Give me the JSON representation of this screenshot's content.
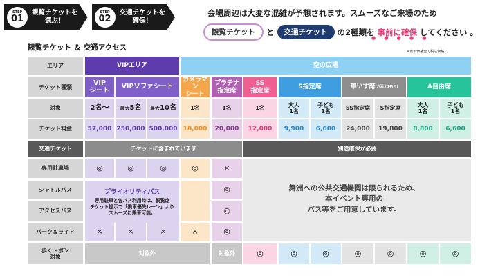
{
  "steps": [
    {
      "word": "STEP",
      "num": "01",
      "line1": "観覧チケットを",
      "line2": "選ぶ！"
    },
    {
      "word": "STEP",
      "num": "02",
      "line1": "交通チケットを",
      "line2": "確保！"
    }
  ],
  "notice": {
    "line1": "会場周辺は大変な混雑が予想されます。スムーズなご来場のため",
    "pill1": "観覧チケット",
    "and": "と",
    "pill2": "交通チケット",
    "mid": "の2種類を",
    "emph": "事前に確保",
    "end": "してください 。",
    "dots": "● ● ● ● ●"
  },
  "section_title": "観覧チケット ＆ 交通アクセス",
  "tax_note": "※表示価格全て税込価格。",
  "row_labels": {
    "area": "エリア",
    "type": "チケット種類",
    "target": "対象",
    "price": "チケット料金",
    "transport": "交通チケット",
    "parking": "専用駐車場",
    "shuttle": "シャトルバス",
    "access": "アクセスバス",
    "park_ride": "パーク＆ライド",
    "walk_1": "歩く～ポン",
    "walk_2": "対象"
  },
  "areas": {
    "vip": "VIPエリア",
    "sky": "空の広場"
  },
  "types": {
    "vip_1": "VIP",
    "vip_2": "シート",
    "sofa": "VIPソファシート",
    "camera_1": "カメラマン",
    "camera_2": "シート",
    "platinum_1": "プラチナ",
    "platinum_2": "指定席",
    "ss_1": "SS",
    "ss_2": "指定席",
    "s": "S指定席",
    "wheelchair": "車いす席",
    "wheelchair_note": "(介添え1名付)",
    "a": "A自由席"
  },
  "targets": {
    "vip": "2名～",
    "sofa5_pre": "最大",
    "sofa5": "5名",
    "sofa10_pre": "最大",
    "sofa10": "10名",
    "camera": "1名",
    "platinum": "1名",
    "ss": "1名",
    "adult_1": "大人",
    "adult_2": "1名",
    "child_1": "子ども",
    "child_2": "1名",
    "ss_seat": "SS指定席",
    "s_seat": "S指定席"
  },
  "prices": {
    "vip": "57,000",
    "sofa5": "250,000",
    "sofa10": "500,000",
    "camera": "18,000",
    "platinum": "20,000",
    "ss": "12,000",
    "s_adult": "9,900",
    "s_child": "6,600",
    "wc_ss": "24,000",
    "wc_s": "19,800",
    "a_adult": "8,800",
    "a_child": "6,600"
  },
  "transport": {
    "included": "チケットに含まれています",
    "separate": "別途確保が必要",
    "yes": "◎",
    "no": "×",
    "not_covered": "対象外"
  },
  "priority": {
    "title": "プライオリティパス",
    "line1": "専用駐車と各バス利用時は、観覧席",
    "line2": "チケット提示で「乗車優先レーン」より",
    "line3": "スムーズに乗車可能。"
  },
  "public_notice": {
    "line1": "舞洲への公共交通機関は限られるため、",
    "line2": "本イベント専用の",
    "line3": "バス等をご用意しています。"
  },
  "colors": {
    "vip": "#5e3cae",
    "camera": "#f4a64b",
    "platinum": "#b05fb3",
    "ss": "#ef5f92",
    "s": "#3f9ee0",
    "wheelchair": "#8d8d8d",
    "a": "#27c39a",
    "emphasis": "#e43d79"
  }
}
